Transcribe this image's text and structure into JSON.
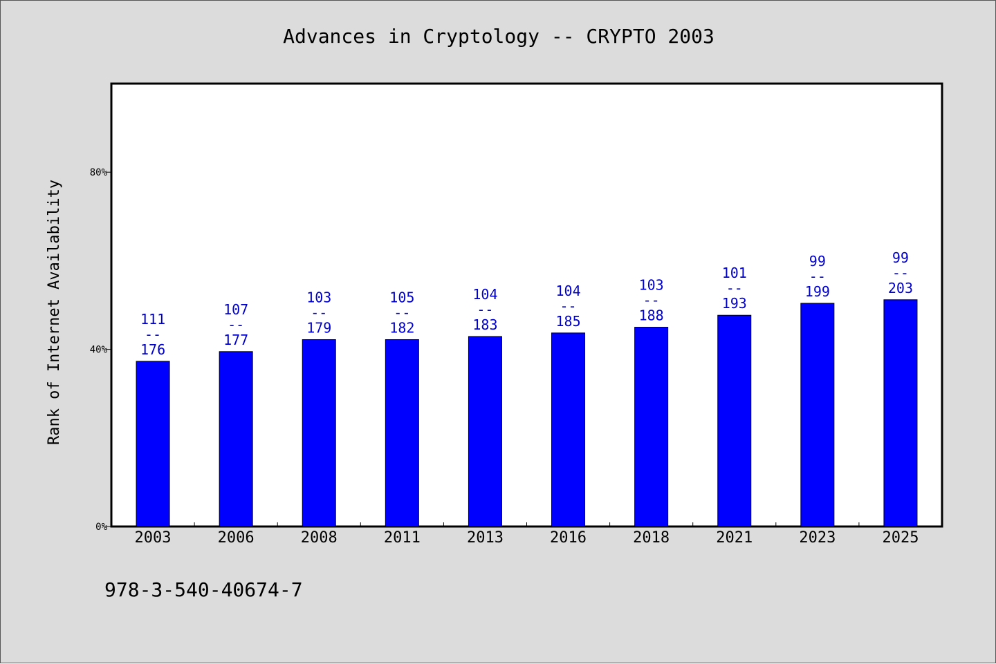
{
  "chart_data": {
    "type": "bar",
    "title": "Advances in Cryptology -- CRYPTO 2003",
    "ylabel": "Rank of Internet Availability",
    "xlabel": "",
    "ylim": [
      0,
      100
    ],
    "yticks": [
      0,
      40,
      80
    ],
    "ytick_labels": [
      "0%",
      "40%",
      "80%"
    ],
    "categories": [
      "2003",
      "2006",
      "2008",
      "2011",
      "2013",
      "2016",
      "2018",
      "2021",
      "2023",
      "2025"
    ],
    "values": [
      37.3,
      39.5,
      42.2,
      42.2,
      42.9,
      43.7,
      45.0,
      47.7,
      50.4,
      51.2
    ],
    "bar_labels": [
      [
        "111",
        "--",
        "176"
      ],
      [
        "107",
        "--",
        "177"
      ],
      [
        "103",
        "--",
        "179"
      ],
      [
        "105",
        "--",
        "182"
      ],
      [
        "104",
        "--",
        "183"
      ],
      [
        "104",
        "--",
        "185"
      ],
      [
        "103",
        "--",
        "188"
      ],
      [
        "101",
        "--",
        "193"
      ],
      [
        "99",
        "--",
        "199"
      ],
      [
        "99",
        "--",
        "203"
      ]
    ],
    "bar_color": "#0000ff",
    "label_color": "#0000cc",
    "background": "#dcdcdc",
    "plot_background": "#ffffff",
    "grid": false,
    "legend": "none"
  },
  "footer": {
    "isbn": "978-3-540-40674-7"
  }
}
